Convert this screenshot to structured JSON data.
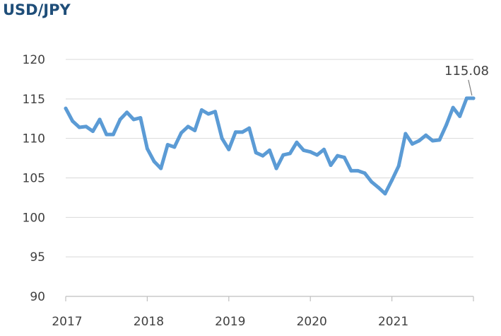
{
  "chart_data": {
    "type": "line",
    "title": "USD/JPY",
    "xlabel": "",
    "ylabel": "",
    "ylim": [
      90,
      120
    ],
    "yticks": [
      90,
      95,
      100,
      105,
      110,
      115,
      120
    ],
    "xlim": [
      2017,
      2022
    ],
    "xticks": [
      2017,
      2018,
      2019,
      2020,
      2021
    ],
    "grid": "horizontal",
    "line_color": "#5b9bd5",
    "series": [
      {
        "x": [
          2017.0,
          2017.083,
          2017.167,
          2017.25,
          2017.333,
          2017.417,
          2017.5,
          2017.583,
          2017.667,
          2017.75,
          2017.833,
          2017.917,
          2018.0,
          2018.083,
          2018.167,
          2018.25,
          2018.333,
          2018.417,
          2018.5,
          2018.583,
          2018.667,
          2018.75,
          2018.833,
          2018.917,
          2019.0,
          2019.083,
          2019.167,
          2019.25,
          2019.333,
          2019.417,
          2019.5,
          2019.583,
          2019.667,
          2019.75,
          2019.833,
          2019.917,
          2020.0,
          2020.083,
          2020.167,
          2020.25,
          2020.333,
          2020.417,
          2020.5,
          2020.583,
          2020.667,
          2020.75,
          2020.833,
          2020.917,
          2021.0,
          2021.083,
          2021.167,
          2021.25,
          2021.333,
          2021.417,
          2021.5,
          2021.583,
          2021.667,
          2021.75,
          2021.833,
          2021.917,
          2022.0
        ],
        "values": [
          113.8,
          112.2,
          111.4,
          111.5,
          110.9,
          112.4,
          110.5,
          110.5,
          112.4,
          113.3,
          112.4,
          112.6,
          108.7,
          107.1,
          106.2,
          109.2,
          108.9,
          110.7,
          111.5,
          111.0,
          113.6,
          113.1,
          113.4,
          110.0,
          108.6,
          110.8,
          110.8,
          111.3,
          108.2,
          107.8,
          108.5,
          106.2,
          107.9,
          108.1,
          109.5,
          108.5,
          108.3,
          107.9,
          108.6,
          106.6,
          107.8,
          107.6,
          105.9,
          105.9,
          105.6,
          104.5,
          103.8,
          103.0,
          104.7,
          106.5,
          110.6,
          109.3,
          109.7,
          110.4,
          109.7,
          109.8,
          111.7,
          113.9,
          112.8,
          115.08,
          115.08
        ]
      }
    ],
    "annotation": {
      "label": "115.08",
      "x": 2021.99,
      "y": 115.08
    }
  }
}
